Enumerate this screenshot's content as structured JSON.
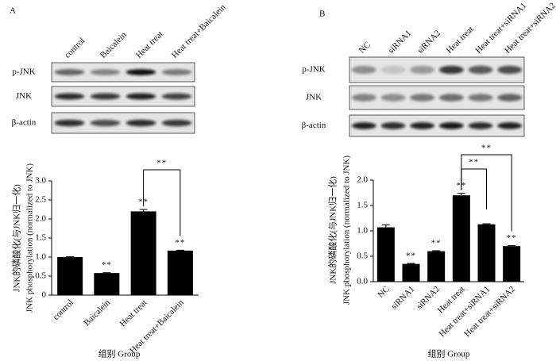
{
  "chart_data": [
    {
      "type": "bar",
      "panel": "A",
      "blot": {
        "lanes": [
          "control",
          "Baicalein",
          "Heat treat",
          "Heat treat+Baicalein"
        ],
        "rows": [
          "p-JNK",
          "JNK",
          "β-actin"
        ]
      },
      "y_label": [
        "JNK的磷酸化(与JNK归一化)",
        "JNK phosphorylation (normalized to JNK)"
      ],
      "x_label": "组别 Group",
      "categories": [
        "control",
        "Baicalein",
        "Heat treat",
        "Heat treat+Baicalein"
      ],
      "values": [
        1.0,
        0.58,
        2.2,
        1.17
      ],
      "errors": [
        0.01,
        0.01,
        0.05,
        0.01
      ],
      "color": "#000000",
      "ylim": [
        0,
        3
      ],
      "yticks": [
        0,
        0.5,
        {
          "value": 1,
          "label": "1.0"
        },
        1.5,
        {
          "value": 2,
          "label": "2.0"
        },
        2.5,
        {
          "value": 3,
          "label": "3.0"
        }
      ],
      "annotations": [
        {
          "text": "**",
          "at": "Baicalein"
        },
        {
          "text": "**",
          "at": "Heat treat"
        },
        {
          "text": "**",
          "at": "Heat treat+Baicalein"
        }
      ],
      "brackets": [
        {
          "text": "**",
          "from": "Heat treat",
          "to": "Heat treat+Baicalein"
        }
      ]
    },
    {
      "type": "bar",
      "panel": "B",
      "blot": {
        "lanes": [
          "NC",
          "siRNA1",
          "siRNA2",
          "Heat treat",
          "Heat treat+siRNA1",
          "Heat treat+siRNA2"
        ],
        "rows": [
          "p-JNK",
          "JNK",
          "β-actin"
        ]
      },
      "y_label": [
        "JNK的磷酸化(与JNK归一化)",
        "JNK phosphorylation (normalized to JNK)"
      ],
      "x_label": "组别 Group",
      "categories": [
        "NC",
        "siRNA1",
        "siRNA2",
        "Heat treat",
        "Heat treat+siRNA1",
        "Heat treat+siRNA2"
      ],
      "values": [
        1.07,
        0.35,
        0.6,
        1.7,
        1.13,
        0.7
      ],
      "errors": [
        0.05,
        0.01,
        0.01,
        0.04,
        0.01,
        0.01
      ],
      "color": "#000000",
      "ylim": [
        0,
        2
      ],
      "yticks": [
        {
          "value": 0,
          "label": "0.0"
        },
        0.5,
        {
          "value": 1,
          "label": "1.0"
        },
        1.5,
        {
          "value": 2,
          "label": "2.0"
        }
      ],
      "annotations": [
        {
          "text": "**",
          "at": "siRNA1"
        },
        {
          "text": "**",
          "at": "siRNA2"
        },
        {
          "text": "**",
          "at": "Heat treat"
        },
        {
          "text": "**",
          "at": "Heat treat+siRNA2"
        }
      ],
      "brackets": [
        {
          "text": "**",
          "from": "Heat treat",
          "to": "Heat treat+siRNA1"
        },
        {
          "text": "**",
          "from": "Heat treat",
          "to": "Heat treat+siRNA2"
        }
      ]
    }
  ]
}
